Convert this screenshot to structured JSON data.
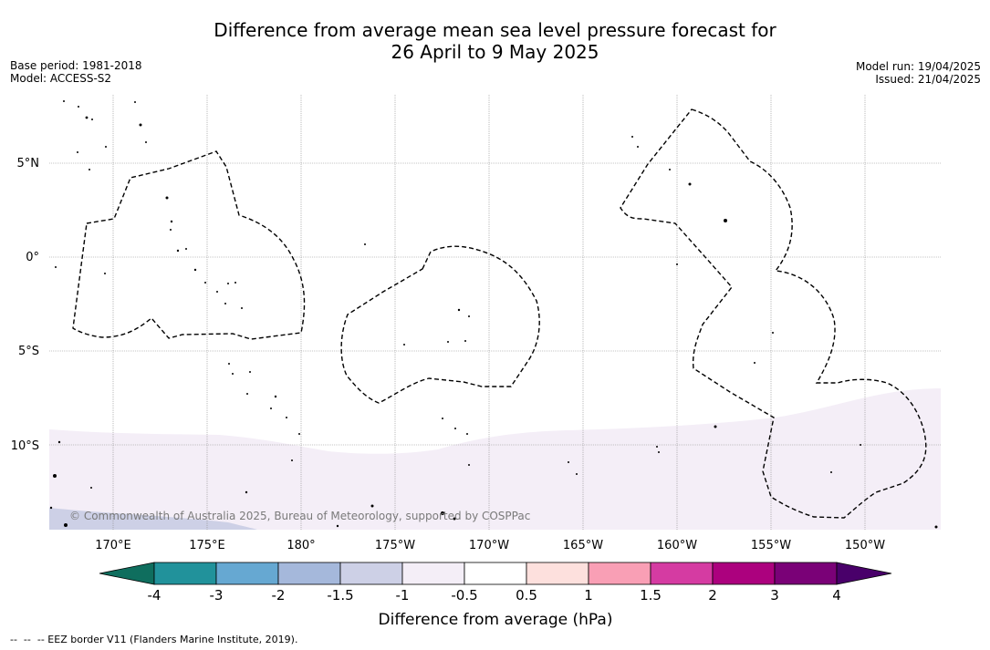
{
  "title": {
    "line1": "Difference from average mean sea level pressure forecast for",
    "line2": "26 April to 9 May 2025"
  },
  "meta_left": {
    "base_period": "Base period: 1981-2018",
    "model": "Model: ACCESS-S2"
  },
  "meta_right": {
    "model_run": "Model run: 19/04/2025",
    "issued": "Issued: 21/04/2025"
  },
  "map": {
    "lat_labels": [
      "5°N",
      "0°",
      "5°S",
      "10°S"
    ],
    "lon_labels": [
      "170°E",
      "175°E",
      "180°",
      "175°W",
      "170°W",
      "165°W",
      "160°W",
      "155°W",
      "150°W"
    ],
    "copyright": "© Commonwealth of Australia 2025, Bureau of Meteorology, supported by COSPPac",
    "fill_colors": {
      "below_minus_half": "#f4eef7",
      "below_minus_one": "#cdd0e6",
      "coast": "#000000",
      "eez": "#000000"
    }
  },
  "colorbar": {
    "title": "Difference from average (hPa)",
    "tick_labels": [
      "-4",
      "-3",
      "-2",
      "-1.5",
      "-1",
      "-0.5",
      "0.5",
      "1",
      "1.5",
      "2",
      "3",
      "4"
    ],
    "colors": [
      "#0f6e5e",
      "#21929b",
      "#66a8d2",
      "#a5b8db",
      "#cdd0e6",
      "#f4eef7",
      "#ffffff",
      "#fde0dd",
      "#f99fb5",
      "#d53ba2",
      "#ac017e",
      "#7a0177",
      "#49006a"
    ]
  },
  "footer": "--  --  -- EEZ border V11 (Flanders Marine Institute, 2019)."
}
